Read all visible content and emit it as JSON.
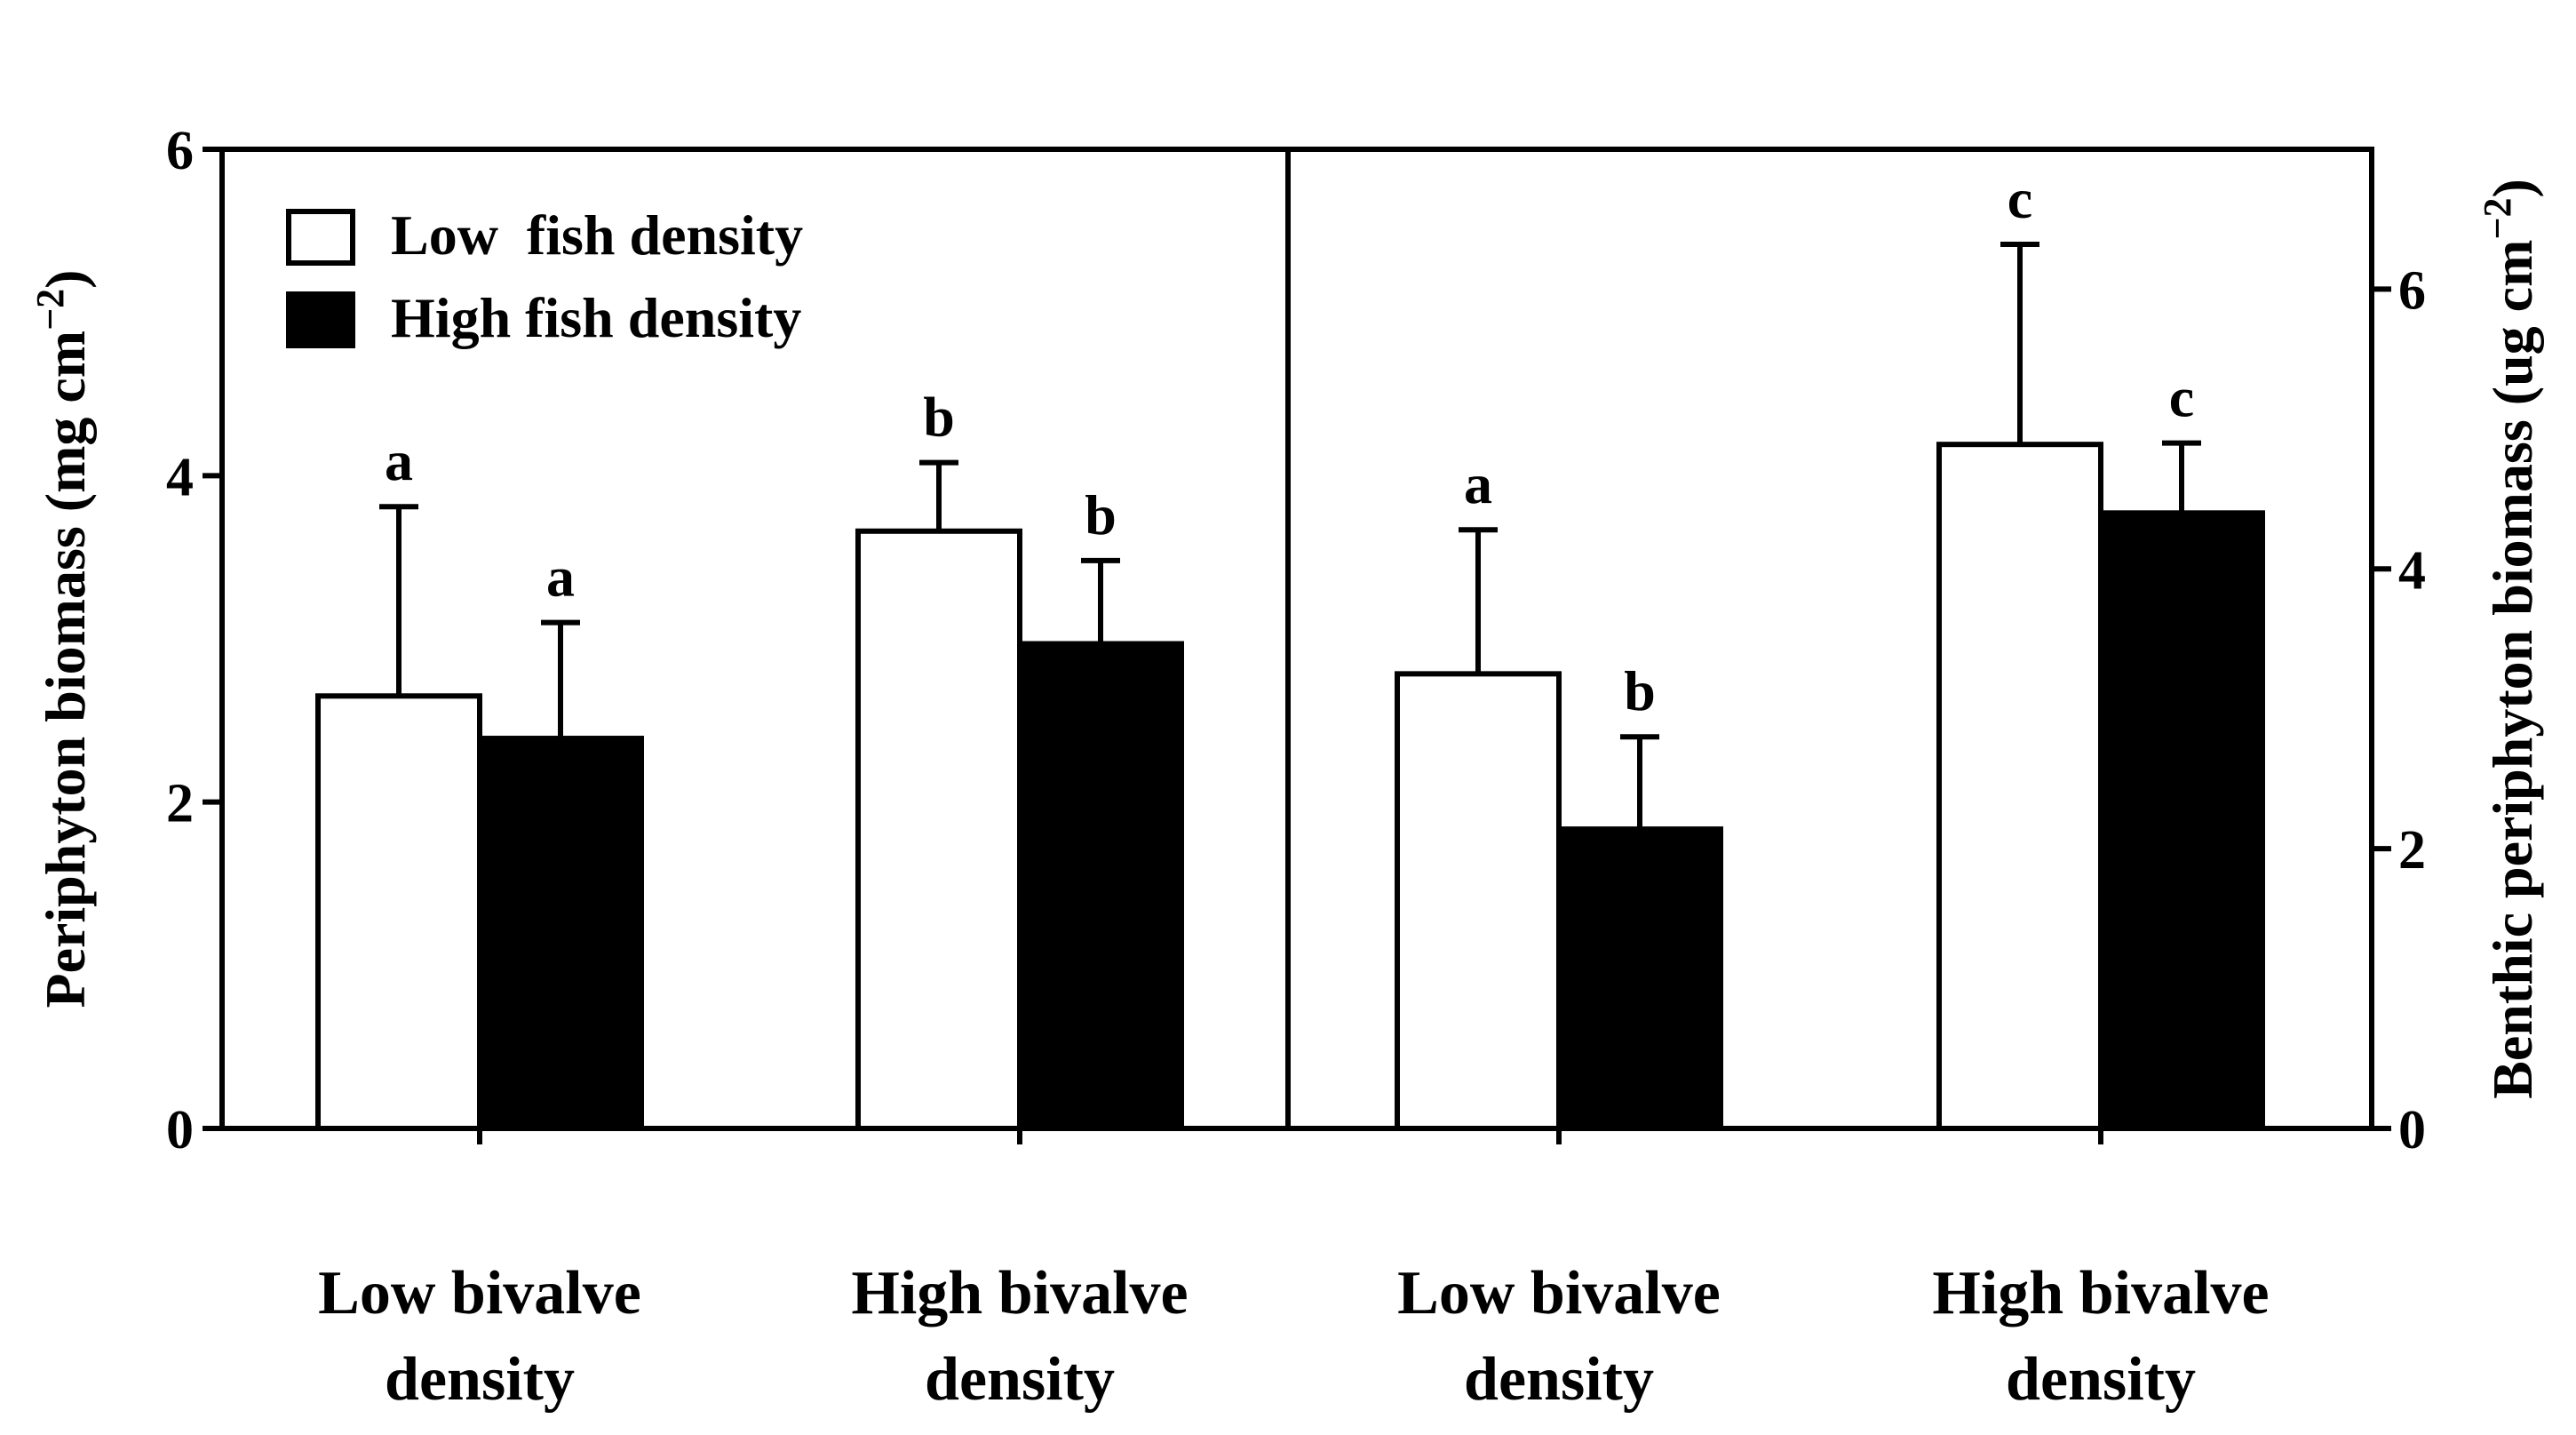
{
  "chart_data": [
    {
      "panel": "left",
      "type": "bar",
      "ylabel": "Periphyton biomass (mg cm",
      "ylabel_sup": "−2",
      "ylabel_tail": ")",
      "ylim": [
        0,
        6
      ],
      "yticks": [
        "0",
        "2",
        "4",
        "6"
      ],
      "categories": [
        {
          "line1": "Low bivalve",
          "line2": "density"
        },
        {
          "line1": "High bivalve",
          "line2": "density"
        }
      ],
      "series": [
        {
          "name": "Low  fish density",
          "fill": "#ffffff",
          "values": [
            2.65,
            3.66
          ],
          "errors": [
            1.16,
            0.42
          ],
          "letters": [
            "a",
            "b"
          ]
        },
        {
          "name": "High fish density",
          "fill": "#000000",
          "values": [
            2.39,
            2.97
          ],
          "errors": [
            0.71,
            0.51
          ],
          "letters": [
            "a",
            "b"
          ]
        }
      ]
    },
    {
      "panel": "right",
      "type": "bar",
      "ylabel": "Benthic periphyton biomass (ug cm",
      "ylabel_sup": "−2",
      "ylabel_tail": ")",
      "ylim": [
        0,
        7
      ],
      "yticks": [
        "0",
        "2",
        "4",
        "6"
      ],
      "categories": [
        {
          "line1": "Low bivalve",
          "line2": "density"
        },
        {
          "line1": "High bivalve",
          "line2": "density"
        }
      ],
      "series": [
        {
          "name": "Low  fish density",
          "fill": "#ffffff",
          "values": [
            3.25,
            4.89
          ],
          "errors": [
            1.03,
            1.43
          ],
          "letters": [
            "a",
            "c"
          ]
        },
        {
          "name": "High fish density",
          "fill": "#000000",
          "values": [
            2.14,
            4.4
          ],
          "errors": [
            0.66,
            0.5
          ],
          "letters": [
            "b",
            "c"
          ]
        }
      ]
    }
  ],
  "legend": {
    "position": "top-left",
    "items": [
      {
        "label": "Low  fish density",
        "fill": "#ffffff"
      },
      {
        "label": "High fish density",
        "fill": "#000000"
      }
    ]
  }
}
